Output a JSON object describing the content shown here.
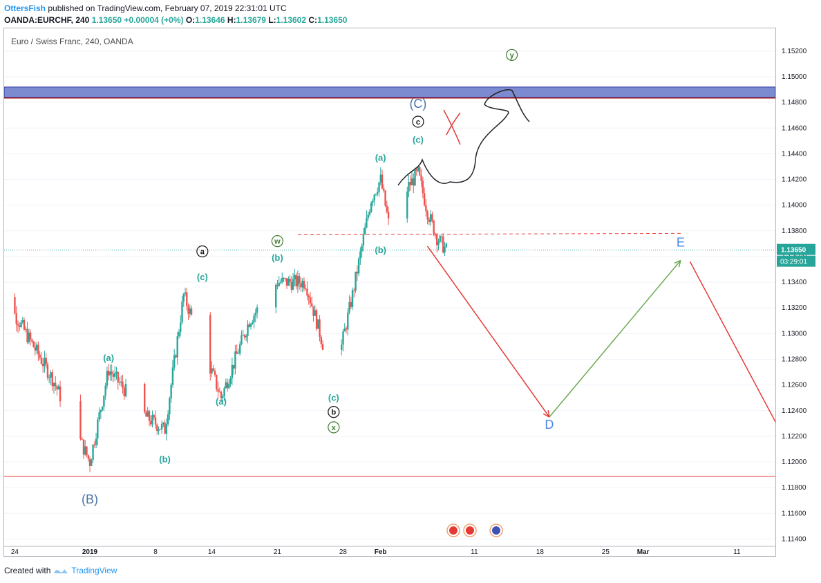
{
  "header": {
    "author": "OttersFish",
    "published_text": " published on TradingView.com, February 07, 2019 22:31:01 UTC",
    "symbol": "OANDA:EURCHF, 240",
    "last": "1.13650",
    "change": "+0.00004 (+0%)",
    "ohlc": {
      "o_label": "O:",
      "o": "1.13646",
      "h_label": "H:",
      "h": "1.13679",
      "l_label": "L:",
      "l": "1.13602",
      "c_label": "C:",
      "c": "1.13650"
    }
  },
  "footer": {
    "created_with": "Created with",
    "brand": "TradingView"
  },
  "colors": {
    "up": "#26a69a",
    "down": "#ef5350",
    "label_teal": "#26a69a",
    "label_blue": "#4a74a8",
    "zone": "#7c8bd0",
    "red_line": "#e53935",
    "green_arrow": "#6aa84f",
    "dotted_last": "#26a69a"
  },
  "chart_data": {
    "type": "candlestick",
    "title": "Euro / Swiss Franc, 240, OANDA",
    "price_axis_ticks": [
      "1.15200",
      "1.15000",
      "1.14800",
      "1.14600",
      "1.14400",
      "1.14200",
      "1.14000",
      "1.13800",
      "1.13600",
      "1.13400",
      "1.13200",
      "1.13000",
      "1.12800",
      "1.12600",
      "1.12400",
      "1.12200",
      "1.12000",
      "1.11800",
      "1.11600",
      "1.11400"
    ],
    "ylim": [
      1.1137,
      1.1535
    ],
    "time_axis_ticks": [
      "24",
      "2019",
      "8",
      "14",
      "21",
      "28",
      "Feb",
      "11",
      "18",
      "25",
      "Mar",
      "11"
    ],
    "last_price_label": "1.13650",
    "countdown_label": "03:29:01",
    "resistance_zone": [
      1.1484,
      1.1492
    ],
    "support_level": 1.1189,
    "breakout_level": 1.1377,
    "anchors": [
      {
        "date": "2018-12-21",
        "price": 1.1338
      },
      {
        "date": "2018-12-24",
        "price": 1.1315
      },
      {
        "date": "2018-12-28",
        "price": 1.1265
      },
      {
        "date": "2019-01-01",
        "price": 1.12
      },
      {
        "date": "2019-01-03",
        "price": 1.1272
      },
      {
        "date": "2019-01-07",
        "price": 1.1235
      },
      {
        "date": "2019-01-09",
        "price": 1.1225
      },
      {
        "date": "2019-01-11",
        "price": 1.133
      },
      {
        "date": "2019-01-15",
        "price": 1.125
      },
      {
        "date": "2019-01-18",
        "price": 1.131
      },
      {
        "date": "2019-01-21",
        "price": 1.134
      },
      {
        "date": "2019-01-24",
        "price": 1.134
      },
      {
        "date": "2019-01-27",
        "price": 1.1262
      },
      {
        "date": "2019-01-29",
        "price": 1.133
      },
      {
        "date": "2019-01-31",
        "price": 1.1405
      },
      {
        "date": "2019-02-01",
        "price": 1.142
      },
      {
        "date": "2019-02-02",
        "price": 1.138
      },
      {
        "date": "2019-02-04",
        "price": 1.1415
      },
      {
        "date": "2019-02-05",
        "price": 1.1425
      },
      {
        "date": "2019-02-06",
        "price": 1.1395
      },
      {
        "date": "2019-02-07",
        "price": 1.1375
      },
      {
        "date": "2019-02-08",
        "price": 1.1365
      }
    ],
    "wave_labels": [
      {
        "text": "(B)",
        "date": "2019-01-01",
        "price": 1.1171,
        "style": "blue-big"
      },
      {
        "text": "(a)",
        "date": "2019-01-03",
        "price": 1.1281,
        "style": "teal"
      },
      {
        "text": "(b)",
        "date": "2019-01-09",
        "price": 1.1202,
        "style": "teal"
      },
      {
        "text": "(c)",
        "date": "2019-01-13",
        "price": 1.1344,
        "style": "teal"
      },
      {
        "text": "a",
        "date": "2019-01-13",
        "price": 1.1364,
        "style": "circle-black"
      },
      {
        "text": "(a)",
        "date": "2019-01-15",
        "price": 1.1247,
        "style": "teal"
      },
      {
        "text": "(b)",
        "date": "2019-01-21",
        "price": 1.1359,
        "style": "teal"
      },
      {
        "text": "w",
        "date": "2019-01-21",
        "price": 1.1372,
        "style": "circle-green"
      },
      {
        "text": "(c)",
        "date": "2019-01-27",
        "price": 1.125,
        "style": "teal"
      },
      {
        "text": "b",
        "date": "2019-01-27",
        "price": 1.1239,
        "style": "circle-black"
      },
      {
        "text": "x",
        "date": "2019-01-27",
        "price": 1.1227,
        "style": "circle-green"
      },
      {
        "text": "(a)",
        "date": "2019-02-01",
        "price": 1.1437,
        "style": "teal"
      },
      {
        "text": "(b)",
        "date": "2019-02-01",
        "price": 1.1365,
        "style": "teal"
      },
      {
        "text": "(c)",
        "date": "2019-02-05",
        "price": 1.1451,
        "style": "teal"
      },
      {
        "text": "c",
        "date": "2019-02-05",
        "price": 1.1465,
        "style": "circle-black"
      },
      {
        "text": "(C)",
        "date": "2019-02-05",
        "price": 1.1479,
        "style": "blue-big"
      },
      {
        "text": "y",
        "date": "2019-02-15",
        "price": 1.1517,
        "style": "circle-green"
      },
      {
        "text": "D",
        "date": "2019-02-19",
        "price": 1.1229,
        "style": "blue-letter"
      },
      {
        "text": "E",
        "date": "2019-03-05",
        "price": 1.1371,
        "style": "blue-letter"
      }
    ],
    "projection": {
      "red_down": [
        {
          "date": "2019-02-06",
          "price": 1.1368
        },
        {
          "date": "2019-02-19",
          "price": 1.1235
        }
      ],
      "green_up": [
        {
          "date": "2019-02-19",
          "price": 1.1235
        },
        {
          "date": "2019-03-05",
          "price": 1.1357
        }
      ],
      "red_down_2": [
        {
          "date": "2019-03-06",
          "price": 1.1356
        },
        {
          "date": "2019-03-19",
          "price": 1.1178
        }
      ]
    }
  }
}
